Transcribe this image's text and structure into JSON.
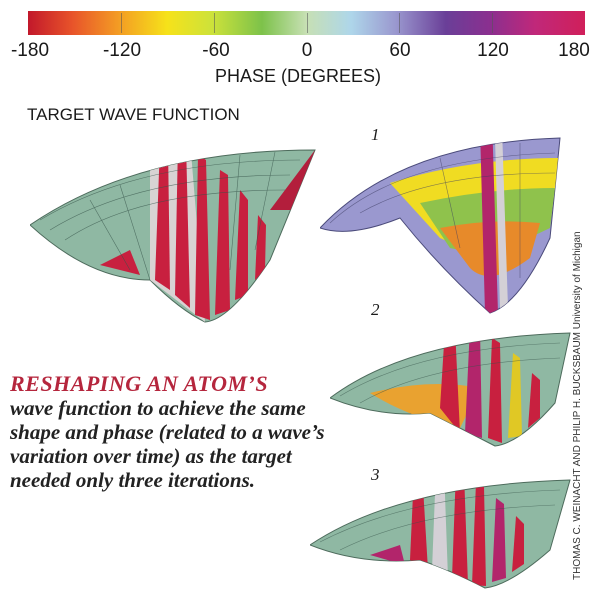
{
  "colorbar": {
    "ticks": [
      "-180",
      "-120",
      "-60",
      "0",
      "60",
      "120",
      "180"
    ],
    "axis_title": "PHASE (DEGREES)"
  },
  "target": {
    "title": "TARGET WAVE FUNCTION"
  },
  "iterations": [
    {
      "label": "1"
    },
    {
      "label": "2"
    },
    {
      "label": "3"
    }
  ],
  "caption": {
    "lead": "RESHAPING AN ATOM’S",
    "body": "wave function to achieve the same shape and phase (related to a wave’s variation over time) as the target needed only three iterations."
  },
  "credit": "THOMAS C. WEINACHT AND PHILIP H. BUCKSBAUM University of Michigan"
}
